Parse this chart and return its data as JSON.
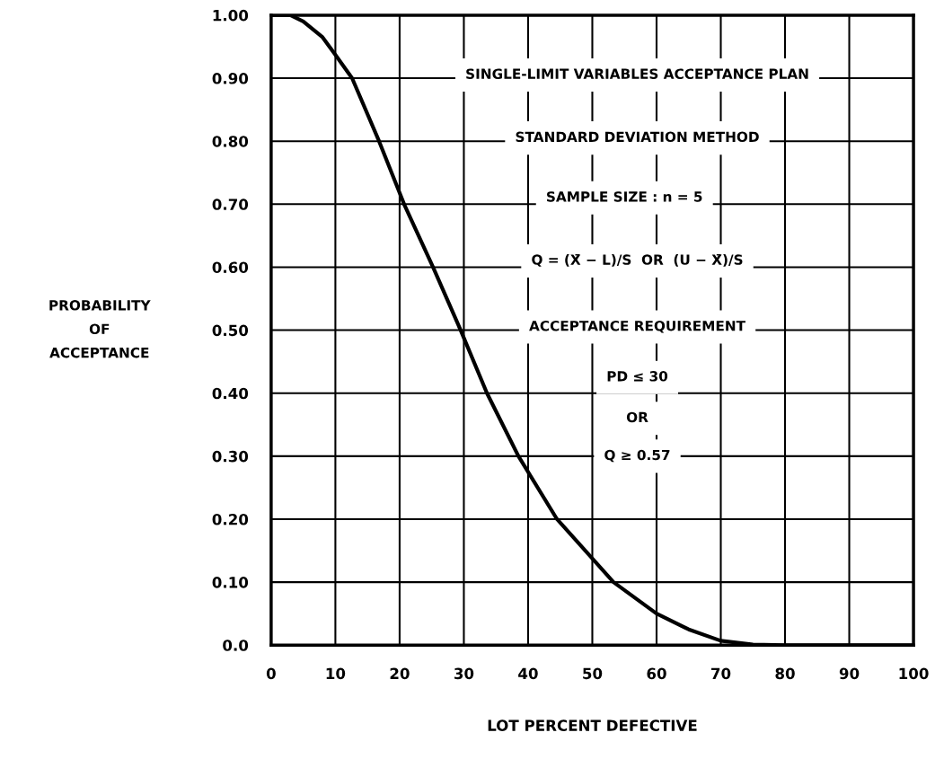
{
  "chart_data": {
    "type": "line",
    "xlabel": "LOT PERCENT DEFECTIVE",
    "ylabel": "PROBABILITY\nOF\nACCEPTANCE",
    "x": [
      0,
      3,
      5,
      8,
      10,
      12.6,
      16.8,
      20.7,
      25.2,
      29.5,
      33.6,
      38.5,
      44.5,
      53.3,
      60,
      65,
      70,
      75,
      80,
      90,
      100
    ],
    "series": [
      {
        "color": "#000000",
        "values": [
          1.0,
          1.0,
          0.99,
          0.965,
          0.937,
          0.9,
          0.8,
          0.7,
          0.6,
          0.5,
          0.4,
          0.3,
          0.2,
          0.1,
          0.05,
          0.025,
          0.007,
          0.001,
          0,
          0,
          0
        ]
      }
    ],
    "annotations": [
      "SINGLE-LIMIT VARIABLES ACCEPTANCE PLAN",
      "STANDARD DEVIATION METHOD",
      "SAMPLE SIZE : n = 5",
      "Q = (X̄ − L)/S  OR  (U − X̄)/S",
      "ACCEPTANCE REQUIREMENT",
      "PD ≤ 30",
      "OR",
      "Q ≥ 0.57"
    ],
    "xlim": [
      0,
      100
    ],
    "xticks": [
      0,
      10,
      20,
      30,
      40,
      50,
      60,
      70,
      80,
      90,
      100
    ],
    "ylim": [
      0,
      1
    ],
    "yticks": [
      {
        "value": 0,
        "label": "0.0"
      },
      {
        "value": 0.1,
        "label": "0.10"
      },
      {
        "value": 0.2,
        "label": "0.20"
      },
      {
        "value": 0.3,
        "label": "0.30"
      },
      {
        "value": 0.4,
        "label": "0.40"
      },
      {
        "value": 0.5,
        "label": "0.50"
      },
      {
        "value": 0.6,
        "label": "0.60"
      },
      {
        "value": 0.7,
        "label": "0.70"
      },
      {
        "value": 0.8,
        "label": "0.80"
      },
      {
        "value": 0.9,
        "label": "0.90"
      },
      {
        "value": 1.0,
        "label": "1.00"
      }
    ],
    "grid": true,
    "line_style": "solid",
    "marker": "none"
  }
}
